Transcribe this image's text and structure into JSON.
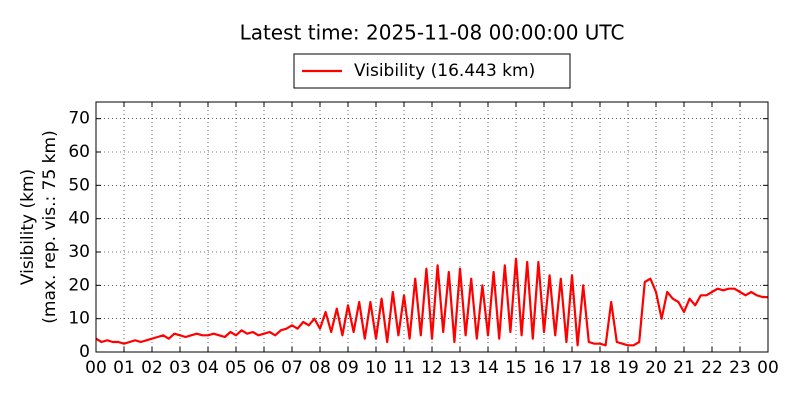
{
  "chart_data": {
    "type": "line",
    "title": "Latest time: 2025-11-08 00:00:00 UTC",
    "y_label": [
      "Visibility (km)",
      "(max. rep. vis.: 75 km)"
    ],
    "legend": "upper center",
    "grid": true,
    "xlim": [
      0,
      24
    ],
    "xticks": [
      {
        "value": 0,
        "label": "00"
      },
      {
        "value": 1,
        "label": "01"
      },
      {
        "value": 2,
        "label": "02"
      },
      {
        "value": 3,
        "label": "03"
      },
      {
        "value": 4,
        "label": "04"
      },
      {
        "value": 5,
        "label": "05"
      },
      {
        "value": 6,
        "label": "06"
      },
      {
        "value": 7,
        "label": "07"
      },
      {
        "value": 8,
        "label": "08"
      },
      {
        "value": 9,
        "label": "09"
      },
      {
        "value": 10,
        "label": "10"
      },
      {
        "value": 11,
        "label": "11"
      },
      {
        "value": 12,
        "label": "12"
      },
      {
        "value": 13,
        "label": "13"
      },
      {
        "value": 14,
        "label": "14"
      },
      {
        "value": 15,
        "label": "15"
      },
      {
        "value": 16,
        "label": "16"
      },
      {
        "value": 17,
        "label": "17"
      },
      {
        "value": 18,
        "label": "18"
      },
      {
        "value": 19,
        "label": "19"
      },
      {
        "value": 20,
        "label": "20"
      },
      {
        "value": 21,
        "label": "21"
      },
      {
        "value": 22,
        "label": "22"
      },
      {
        "value": 23,
        "label": "23"
      },
      {
        "value": 24,
        "label": "00"
      }
    ],
    "ylim": [
      0,
      75
    ],
    "yticks": [
      0,
      10,
      20,
      30,
      40,
      50,
      60,
      70
    ],
    "x": [
      0,
      0.2,
      0.4,
      0.6,
      0.8,
      1,
      1.2,
      1.4,
      1.6,
      1.8,
      2,
      2.2,
      2.4,
      2.6,
      2.8,
      3,
      3.2,
      3.4,
      3.6,
      3.8,
      4,
      4.2,
      4.4,
      4.6,
      4.8,
      5,
      5.2,
      5.4,
      5.6,
      5.8,
      6,
      6.2,
      6.4,
      6.6,
      6.8,
      7,
      7.2,
      7.4,
      7.6,
      7.8,
      8,
      8.2,
      8.4,
      8.6,
      8.8,
      9,
      9.2,
      9.4,
      9.6,
      9.8,
      10,
      10.2,
      10.4,
      10.6,
      10.8,
      11,
      11.2,
      11.4,
      11.6,
      11.8,
      12,
      12.2,
      12.4,
      12.6,
      12.8,
      13,
      13.2,
      13.4,
      13.6,
      13.8,
      14,
      14.2,
      14.4,
      14.6,
      14.8,
      15,
      15.2,
      15.4,
      15.6,
      15.8,
      16,
      16.2,
      16.4,
      16.6,
      16.8,
      17,
      17.2,
      17.4,
      17.6,
      17.8,
      18,
      18.2,
      18.4,
      18.6,
      18.8,
      19,
      19.2,
      19.4,
      19.6,
      19.8,
      20,
      20.2,
      20.4,
      20.6,
      20.8,
      21,
      21.2,
      21.4,
      21.6,
      21.8,
      22,
      22.2,
      22.4,
      22.6,
      22.8,
      23,
      23.2,
      23.4,
      23.6,
      23.8,
      24
    ],
    "series": [
      {
        "name": "Visibility (16.443 km)",
        "color": "#ff0000",
        "values": [
          4,
          3,
          3.5,
          3,
          3,
          2.5,
          3,
          3.5,
          3,
          3.5,
          4,
          4.5,
          5,
          4,
          5.5,
          5,
          4.5,
          5,
          5.5,
          5,
          5,
          5.5,
          5,
          4.5,
          6,
          5,
          6.5,
          5.5,
          6,
          5,
          5.5,
          6,
          5,
          6.5,
          7,
          8,
          7,
          9,
          8,
          10,
          7,
          12,
          6,
          13,
          5,
          14,
          6,
          15,
          4,
          15,
          4,
          16,
          3,
          18,
          5,
          17,
          4,
          22,
          5,
          25,
          4,
          26,
          6,
          24,
          3,
          25,
          5,
          22,
          4,
          20,
          5,
          24,
          4,
          26,
          6,
          28,
          5,
          27,
          4,
          27,
          6,
          23,
          5,
          22,
          3,
          23,
          2,
          20,
          3,
          2.5,
          2.5,
          2,
          15,
          3,
          2.5,
          2,
          2,
          3,
          21,
          22,
          18,
          10,
          18,
          16,
          15,
          12,
          16,
          14,
          17,
          17,
          18,
          19,
          18.5,
          19,
          19,
          18,
          17,
          18,
          17,
          16.5,
          16.443
        ]
      }
    ]
  }
}
